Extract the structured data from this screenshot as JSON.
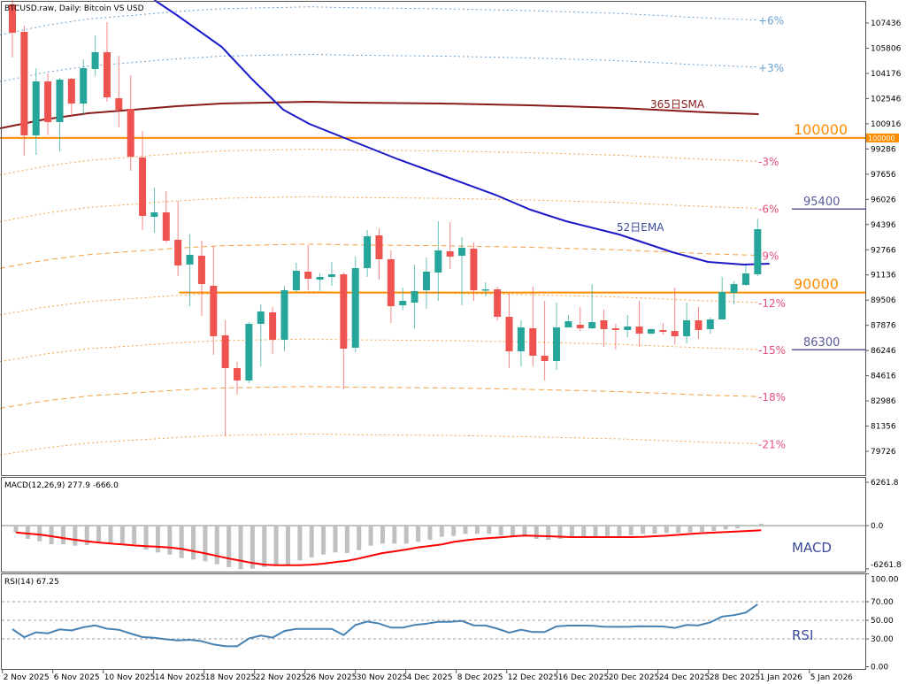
{
  "header": {
    "title": "BTCUSD.raw, Daily:  Bitcoin VS USD"
  },
  "colors": {
    "up": "#26a69a",
    "down": "#ef5350",
    "ema": "#1a1ac8",
    "sma": "#8b1a1a",
    "level": "#ff8c00",
    "target": "#5a5a9a",
    "macd_hist": "#c0c0c0",
    "macd_signal": "#ff0000",
    "rsi": "#4682b4"
  },
  "chart_data": [
    {
      "type": "candlestick",
      "title": "BTCUSD.raw, Daily:  Bitcoin VS USD",
      "ylim": [
        78800,
        108925
      ],
      "price_ticks": [
        "107436",
        "105806",
        "104176",
        "102546",
        "100916",
        "99286",
        "97656",
        "96026",
        "94396",
        "92766",
        "91136",
        "89506",
        "87876",
        "86246",
        "84616",
        "82986",
        "81356",
        "79726"
      ],
      "current_price_tag": "100000",
      "candles": [
        [
          108639,
          108925,
          105204,
          106807
        ],
        [
          106864,
          107265,
          98849,
          100166
        ],
        [
          100166,
          104517,
          98906,
          103658
        ],
        [
          103658,
          104173,
          100166,
          101025
        ],
        [
          101025,
          103887,
          99135,
          103773
        ],
        [
          103830,
          103887,
          101368,
          102227
        ],
        [
          102227,
          105089,
          101425,
          104517
        ],
        [
          104460,
          106635,
          104002,
          105547
        ],
        [
          105547,
          107494,
          102341,
          102628
        ],
        [
          102570,
          105318,
          100681,
          101826
        ],
        [
          101883,
          104059,
          97876,
          98792
        ],
        [
          98735,
          100452,
          94040,
          94956
        ],
        [
          94899,
          96788,
          93868,
          95185
        ],
        [
          95185,
          96559,
          93239,
          93353
        ],
        [
          93410,
          95929,
          91063,
          91750
        ],
        [
          91807,
          93754,
          89117,
          92437
        ],
        [
          92380,
          93353,
          88486,
          90548
        ],
        [
          90433,
          93010,
          85968,
          87170
        ],
        [
          87227,
          88200,
          80701,
          85109
        ],
        [
          85109,
          85510,
          83391,
          84308
        ],
        [
          84308,
          88086,
          84136,
          87972
        ],
        [
          87972,
          89231,
          85224,
          88773
        ],
        [
          88716,
          89059,
          86025,
          86941
        ],
        [
          86941,
          90433,
          86197,
          90147
        ],
        [
          90147,
          91922,
          90033,
          91406
        ],
        [
          91349,
          93067,
          90147,
          90891
        ],
        [
          90834,
          91235,
          90090,
          91006
        ],
        [
          91006,
          91979,
          90433,
          91178
        ],
        [
          91178,
          91292,
          83735,
          86369
        ],
        [
          86426,
          92322,
          86139,
          91578
        ],
        [
          91578,
          94040,
          91006,
          93639
        ],
        [
          93697,
          94154,
          90834,
          92151
        ],
        [
          92151,
          92723,
          88029,
          89117
        ],
        [
          89174,
          90319,
          88888,
          89460
        ],
        [
          89345,
          91807,
          87685,
          90090
        ],
        [
          90147,
          92265,
          88945,
          91349
        ],
        [
          91292,
          94613,
          89460,
          92723
        ],
        [
          92666,
          94555,
          91521,
          92322
        ],
        [
          92380,
          93582,
          89174,
          92895
        ],
        [
          92838,
          93239,
          89460,
          90147
        ],
        [
          90147,
          90662,
          89746,
          90204
        ],
        [
          90204,
          90376,
          88200,
          88429
        ],
        [
          88429,
          89918,
          85109,
          86196
        ],
        [
          86196,
          88200,
          85224,
          87743
        ],
        [
          87685,
          90376,
          85224,
          85911
        ],
        [
          85911,
          89460,
          84308,
          85567
        ],
        [
          85567,
          89345,
          84995,
          87743
        ],
        [
          87743,
          88544,
          87743,
          88143
        ],
        [
          87914,
          89059,
          87514,
          87685
        ],
        [
          87685,
          90548,
          87640,
          88086
        ],
        [
          88200,
          88888,
          86483,
          87628
        ],
        [
          87685,
          87972,
          86311,
          87571
        ],
        [
          87571,
          88544,
          87112,
          87800
        ],
        [
          87800,
          89460,
          86483,
          87342
        ],
        [
          87342,
          87685,
          87285,
          87628
        ],
        [
          87571,
          88029,
          87285,
          87456
        ],
        [
          87514,
          90319,
          86643,
          87170
        ],
        [
          87170,
          89345,
          86712,
          88200
        ],
        [
          88200,
          89059,
          86998,
          87571
        ],
        [
          87628,
          88372,
          87342,
          88258
        ],
        [
          88258,
          91006,
          88258,
          90033
        ],
        [
          89975,
          90720,
          89231,
          90548
        ],
        [
          90491,
          91750,
          90433,
          91235
        ],
        [
          91178,
          94784,
          91063,
          94096
        ]
      ],
      "candle_fields": [
        "open",
        "high",
        "low",
        "close"
      ],
      "ema52": {
        "label": "52日EMA",
        "points": [
          [
            12.0,
            108925
          ],
          [
            13.9,
            107952
          ],
          [
            17.7,
            105891
          ],
          [
            20.3,
            103773
          ],
          [
            22.9,
            101826
          ],
          [
            25.1,
            100910
          ],
          [
            28.1,
            99994
          ],
          [
            32.6,
            98620
          ],
          [
            36.3,
            97590
          ],
          [
            40.8,
            96330
          ],
          [
            43.8,
            95357
          ],
          [
            46.8,
            94613
          ],
          [
            51.3,
            93754
          ],
          [
            55.8,
            92609
          ],
          [
            58.8,
            91979
          ],
          [
            61.8,
            91807
          ],
          [
            64.0,
            91864
          ]
        ]
      },
      "sma365": {
        "label": "365日SMA",
        "points": [
          [
            -1.05,
            100624
          ],
          [
            2.7,
            101196
          ],
          [
            6.4,
            101597
          ],
          [
            10.2,
            101826
          ],
          [
            13.9,
            102055
          ],
          [
            17.7,
            102227
          ],
          [
            21.4,
            102284
          ],
          [
            25.1,
            102341
          ],
          [
            28.9,
            102284
          ],
          [
            36.3,
            102227
          ],
          [
            43.8,
            102112
          ],
          [
            51.3,
            101940
          ],
          [
            58.8,
            101654
          ],
          [
            63.1,
            101540
          ]
        ]
      },
      "envelopes": [
        {
          "pct": 6,
          "label": "+6%",
          "color": "#6a9fd0",
          "style": "dot"
        },
        {
          "pct": 3,
          "label": "+3%",
          "color": "#6a9fd0",
          "style": "dot"
        },
        {
          "pct": -3,
          "label": "-3%",
          "color": "#f4a040",
          "style": "dot"
        },
        {
          "pct": -6,
          "label": "-6%",
          "color": "#f4a040",
          "style": "dot"
        },
        {
          "pct": -9,
          "label": "-9%",
          "color": "#f4a040",
          "style": "dash"
        },
        {
          "pct": -12,
          "label": "-12%",
          "color": "#f4a040",
          "style": "dot"
        },
        {
          "pct": -15,
          "label": "-15%",
          "color": "#f4a040",
          "style": "dot"
        },
        {
          "pct": -18,
          "label": "-18%",
          "color": "#f4a040",
          "style": "dash"
        },
        {
          "pct": -21,
          "label": "-21%",
          "color": "#f4a040",
          "style": "dot"
        }
      ],
      "levels": [
        {
          "price": 100000,
          "label": "100000",
          "kind": "major",
          "from_index": -1.1
        },
        {
          "price": 90000,
          "label": "90000",
          "kind": "major",
          "from_index": 14.1
        },
        {
          "price": 95400,
          "label": "95400",
          "kind": "target"
        },
        {
          "price": 86300,
          "label": "86300",
          "kind": "target"
        }
      ]
    },
    {
      "type": "bar",
      "title": "MACD(12,26,9) 277.9 -666.0",
      "name_label": "MACD",
      "ylim": [
        -6261.8,
        6261.8
      ],
      "tick_labels": [
        "6261.8",
        "0.0",
        "-6261.8"
      ],
      "histogram": [
        -981,
        -1920,
        -2261,
        -2688,
        -2688,
        -2901,
        -2816,
        -2560,
        -2688,
        -2688,
        -2688,
        -3456,
        -3883,
        -4181,
        -4693,
        -4907,
        -5163,
        -5589,
        -6016,
        -6315,
        -6229,
        -6016,
        -5760,
        -5675,
        -5035,
        -4608,
        -4181,
        -3883,
        -3968,
        -3541,
        -2901,
        -2603,
        -2603,
        -2603,
        -2347,
        -2048,
        -1621,
        -1493,
        -1195,
        -1195,
        -1195,
        -1408,
        -1493,
        -1536,
        -1920,
        -2048,
        -1920,
        -1621,
        -1621,
        -1536,
        -1493,
        -1493,
        -1408,
        -1195,
        -1195,
        -1067,
        -1067,
        -981,
        -896,
        -768,
        -555,
        -384,
        -128,
        278
      ],
      "signal": [
        -1000,
        -1150,
        -1290,
        -1530,
        -1800,
        -2050,
        -2260,
        -2450,
        -2600,
        -2720,
        -2870,
        -2970,
        -3060,
        -3160,
        -3360,
        -3700,
        -4020,
        -4390,
        -4760,
        -5070,
        -5420,
        -5650,
        -5717,
        -5717,
        -5717,
        -5650,
        -5500,
        -5270,
        -5080,
        -4760,
        -4350,
        -3970,
        -3720,
        -3450,
        -3150,
        -2950,
        -2720,
        -2360,
        -2130,
        -1930,
        -1800,
        -1690,
        -1550,
        -1450,
        -1480,
        -1530,
        -1600,
        -1664,
        -1664,
        -1664,
        -1664,
        -1664,
        -1664,
        -1620,
        -1540,
        -1460,
        -1330,
        -1200,
        -1090,
        -1010,
        -920,
        -850,
        -770,
        -666
      ]
    },
    {
      "type": "line",
      "title": "RSI(14) 67.25",
      "name_label": "RSI",
      "ylim": [
        0,
        100
      ],
      "tick_labels": [
        "100.00",
        "70.00",
        "50.00",
        "30.00",
        "0.00"
      ],
      "levels": [
        70,
        50,
        30
      ],
      "values": [
        40.5,
        31.8,
        37,
        36,
        40.2,
        39,
        42.5,
        44.5,
        41,
        39.8,
        35.7,
        31.9,
        31.2,
        29.5,
        28.3,
        29,
        27.5,
        24,
        22.2,
        22,
        30.5,
        33.5,
        31.3,
        38.5,
        40.8,
        40.8,
        40.8,
        40.8,
        34.1,
        45,
        48.7,
        46.5,
        42.1,
        42.1,
        45,
        46.3,
        48.4,
        48.4,
        49.2,
        44.6,
        44.4,
        41,
        36.7,
        39.8,
        37.3,
        37.3,
        43.5,
        44.3,
        44.3,
        44.2,
        43.1,
        43,
        43,
        43.6,
        43.4,
        43.3,
        41.8,
        45,
        44.6,
        47.8,
        54,
        55.5,
        58.3,
        67.25
      ]
    }
  ],
  "x_axis": {
    "labels": [
      "2 Nov 2025",
      "6 Nov 2025",
      "10 Nov 2025",
      "14 Nov 2025",
      "18 Nov 2025",
      "22 Nov 2025",
      "26 Nov 2025",
      "30 Nov 2025",
      "4 Dec 2025",
      "8 Dec 2025",
      "12 Dec 2025",
      "16 Dec 2025",
      "20 Dec 2025",
      "24 Dec 2025",
      "28 Dec 2025",
      "1 Jan 2026",
      "5 Jan 2026"
    ]
  }
}
